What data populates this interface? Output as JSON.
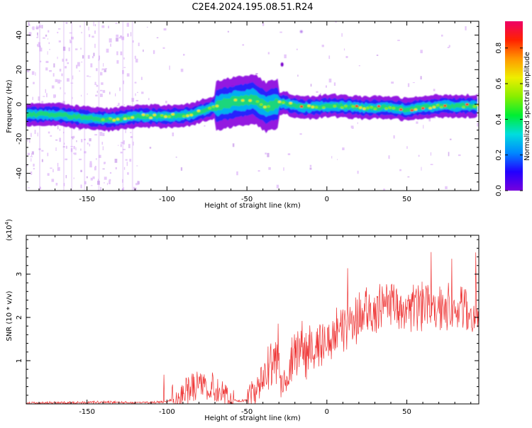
{
  "chart_data": [
    {
      "type": "heatmap",
      "title": "C2E4.2024.195.08.51.R24",
      "xlabel": "Height of straight line (km)",
      "ylabel": "Frequency (Hz)",
      "xlim": [
        -188,
        95
      ],
      "ylim": [
        -50,
        48
      ],
      "xticks": [
        -150,
        -100,
        -50,
        0,
        50
      ],
      "yticks": [
        -40,
        -20,
        0,
        20,
        40
      ],
      "colorbar": {
        "label": "Normalized spectral amplitude",
        "range": [
          0,
          0.95
        ],
        "ticks": [
          "0.0",
          "0.2",
          "0.4",
          "0.6",
          "0.8"
        ],
        "colors": [
          "#7700dd",
          "#2200ff",
          "#0088ff",
          "#00dddd",
          "#00ee33",
          "#88ee00",
          "#eeee00",
          "#ff9900",
          "#ff2200",
          "#ee0066"
        ]
      },
      "ridge": {
        "x": [
          -188,
          -170,
          -150,
          -135,
          -120,
          -100,
          -85,
          -75,
          -65,
          -55,
          -45,
          -38,
          -33,
          -28,
          -20,
          -10,
          0,
          10,
          20,
          30,
          40,
          50,
          60,
          70,
          80,
          95
        ],
        "freq": [
          -6,
          -6,
          -8,
          -9,
          -7,
          -7,
          -6,
          -3,
          0,
          2,
          3,
          -2,
          0,
          1,
          -1,
          -2,
          -1,
          -1,
          -2,
          -2,
          -2,
          -3,
          -2,
          -1,
          -1,
          -1
        ]
      }
    },
    {
      "type": "line",
      "xlabel": "Height of straight line (km)",
      "ylabel": "SNR (10 * v/v)",
      "y_multiplier": "(x10",
      "y_exponent": "4",
      "y_multiplier_close": ")",
      "xlim": [
        -188,
        95
      ],
      "ylim": [
        0,
        3.9
      ],
      "xticks": [
        -150,
        -100,
        -50,
        0,
        50
      ],
      "yticks": [
        1,
        2,
        3
      ],
      "color": "#ee3333",
      "trend": {
        "x": [
          -188,
          -160,
          -140,
          -110,
          -100,
          -92,
          -85,
          -80,
          -75,
          -70,
          -65,
          -60,
          -55,
          -50,
          -45,
          -40,
          -35,
          -30,
          -28,
          -25,
          -20,
          -15,
          -10,
          0,
          10,
          20,
          30,
          40,
          50,
          60,
          70,
          80,
          95
        ],
        "y": [
          0.02,
          0.03,
          0.04,
          0.03,
          0.05,
          0.18,
          0.4,
          0.45,
          0.38,
          0.3,
          0.22,
          0.12,
          0.06,
          0.1,
          0.25,
          0.6,
          0.85,
          1.0,
          0.4,
          0.5,
          1.2,
          1.1,
          1.3,
          1.5,
          1.7,
          2.0,
          2.2,
          2.3,
          2.2,
          2.25,
          2.15,
          2.2,
          2.1
        ]
      }
    }
  ]
}
